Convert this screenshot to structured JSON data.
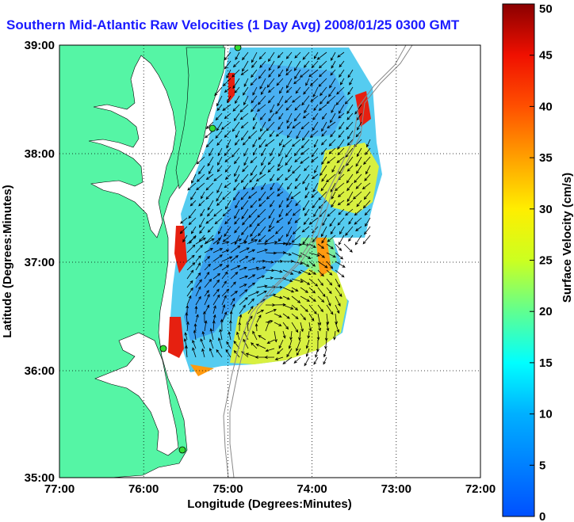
{
  "title": "Southern Mid-Atlantic Raw Velocities (1 Day Avg) 2008/01/25 0300 GMT",
  "x_axis": {
    "label": "Longitude (Degrees:Minutes)",
    "ticks": [
      "77:00",
      "76:00",
      "75:00",
      "74:00",
      "73:00",
      "72:00"
    ]
  },
  "y_axis": {
    "label": "Latitude (Degrees:Minutes)",
    "ticks": [
      "39:00",
      "38:00",
      "37:00",
      "36:00",
      "35:00"
    ]
  },
  "colorbar": {
    "label": "Surface Velocity (cm/s)",
    "ticks": [
      "50",
      "45",
      "40",
      "35",
      "30",
      "25",
      "20",
      "15",
      "10",
      "5",
      "0"
    ],
    "min": 0,
    "max": 50
  },
  "colors": {
    "land": "#55f5a5",
    "title": "#1a1aff",
    "station": "#33dd33"
  }
}
